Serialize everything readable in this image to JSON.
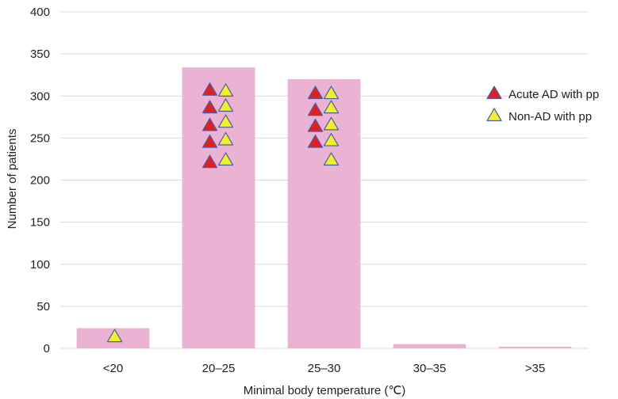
{
  "chart_data": {
    "type": "bar",
    "categories": [
      "<20",
      "20–25",
      "25–30",
      "30–35",
      ">35"
    ],
    "values": [
      24,
      334,
      320,
      5,
      2
    ],
    "xlabel": "Minimal body temperature (℃)",
    "ylabel": "Number of patients",
    "ylim": [
      0,
      400
    ],
    "yticks": [
      0,
      50,
      100,
      150,
      200,
      250,
      300,
      350,
      400
    ],
    "grid": true,
    "bar_color": "#ebb3d3",
    "legend_position": "right",
    "markers": [
      {
        "name": "Acute AD with pp",
        "color": "#e02020",
        "points": [
          {
            "category": "20–25",
            "y": 307
          },
          {
            "category": "20–25",
            "y": 286
          },
          {
            "category": "20–25",
            "y": 265
          },
          {
            "category": "20–25",
            "y": 245
          },
          {
            "category": "20–25",
            "y": 221
          },
          {
            "category": "25–30",
            "y": 303
          },
          {
            "category": "25–30",
            "y": 283
          },
          {
            "category": "25–30",
            "y": 264
          },
          {
            "category": "25–30",
            "y": 245
          }
        ]
      },
      {
        "name": "Non-AD with pp",
        "color": "#f0f02a",
        "points": [
          {
            "category": "<20",
            "y": 14
          },
          {
            "category": "20–25",
            "y": 306
          },
          {
            "category": "20–25",
            "y": 288
          },
          {
            "category": "20–25",
            "y": 269
          },
          {
            "category": "20–25",
            "y": 248
          },
          {
            "category": "20–25",
            "y": 224
          },
          {
            "category": "25–30",
            "y": 303
          },
          {
            "category": "25–30",
            "y": 286
          },
          {
            "category": "25–30",
            "y": 266
          },
          {
            "category": "25–30",
            "y": 247
          },
          {
            "category": "25–30",
            "y": 224
          }
        ]
      }
    ]
  }
}
